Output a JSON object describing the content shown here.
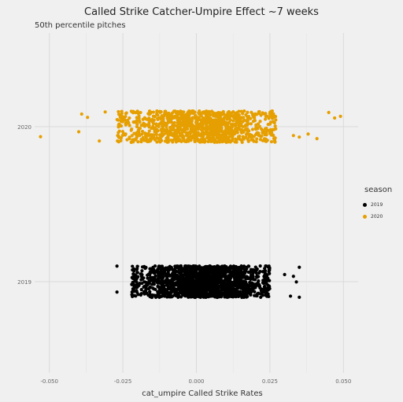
{
  "chart_data": {
    "type": "scatter",
    "title": "Called Strike Catcher-Umpire Effect ~7 weeks",
    "subtitle": "50th percentile pitches",
    "xlabel": "cat_umpire Called Strike Rates",
    "ylabel": "",
    "xlim": [
      -0.055,
      0.055
    ],
    "x_ticks": [
      "-0.050",
      "-0.025",
      "0.000",
      "0.025",
      "0.050"
    ],
    "x_tick_values": [
      -0.05,
      -0.025,
      0.0,
      0.025,
      0.05
    ],
    "categories": [
      "2019",
      "2020"
    ],
    "grid": true,
    "legend": {
      "title": "season",
      "position": "right"
    },
    "series": [
      {
        "name": "2019",
        "color": "#000000",
        "category": "2019",
        "count": 1800,
        "x_range_core": [
          -0.022,
          0.025
        ],
        "x_extremes": [
          -0.027,
          -0.027,
          0.03,
          0.032,
          0.033,
          0.034,
          0.035,
          0.035
        ]
      },
      {
        "name": "2020",
        "color": "#E69F00",
        "category": "2020",
        "count": 1200,
        "x_range_core": [
          -0.027,
          0.027
        ],
        "x_extremes": [
          -0.053,
          -0.04,
          -0.039,
          -0.037,
          -0.033,
          -0.031,
          0.033,
          0.035,
          0.038,
          0.041,
          0.045,
          0.047,
          0.049
        ]
      }
    ]
  }
}
